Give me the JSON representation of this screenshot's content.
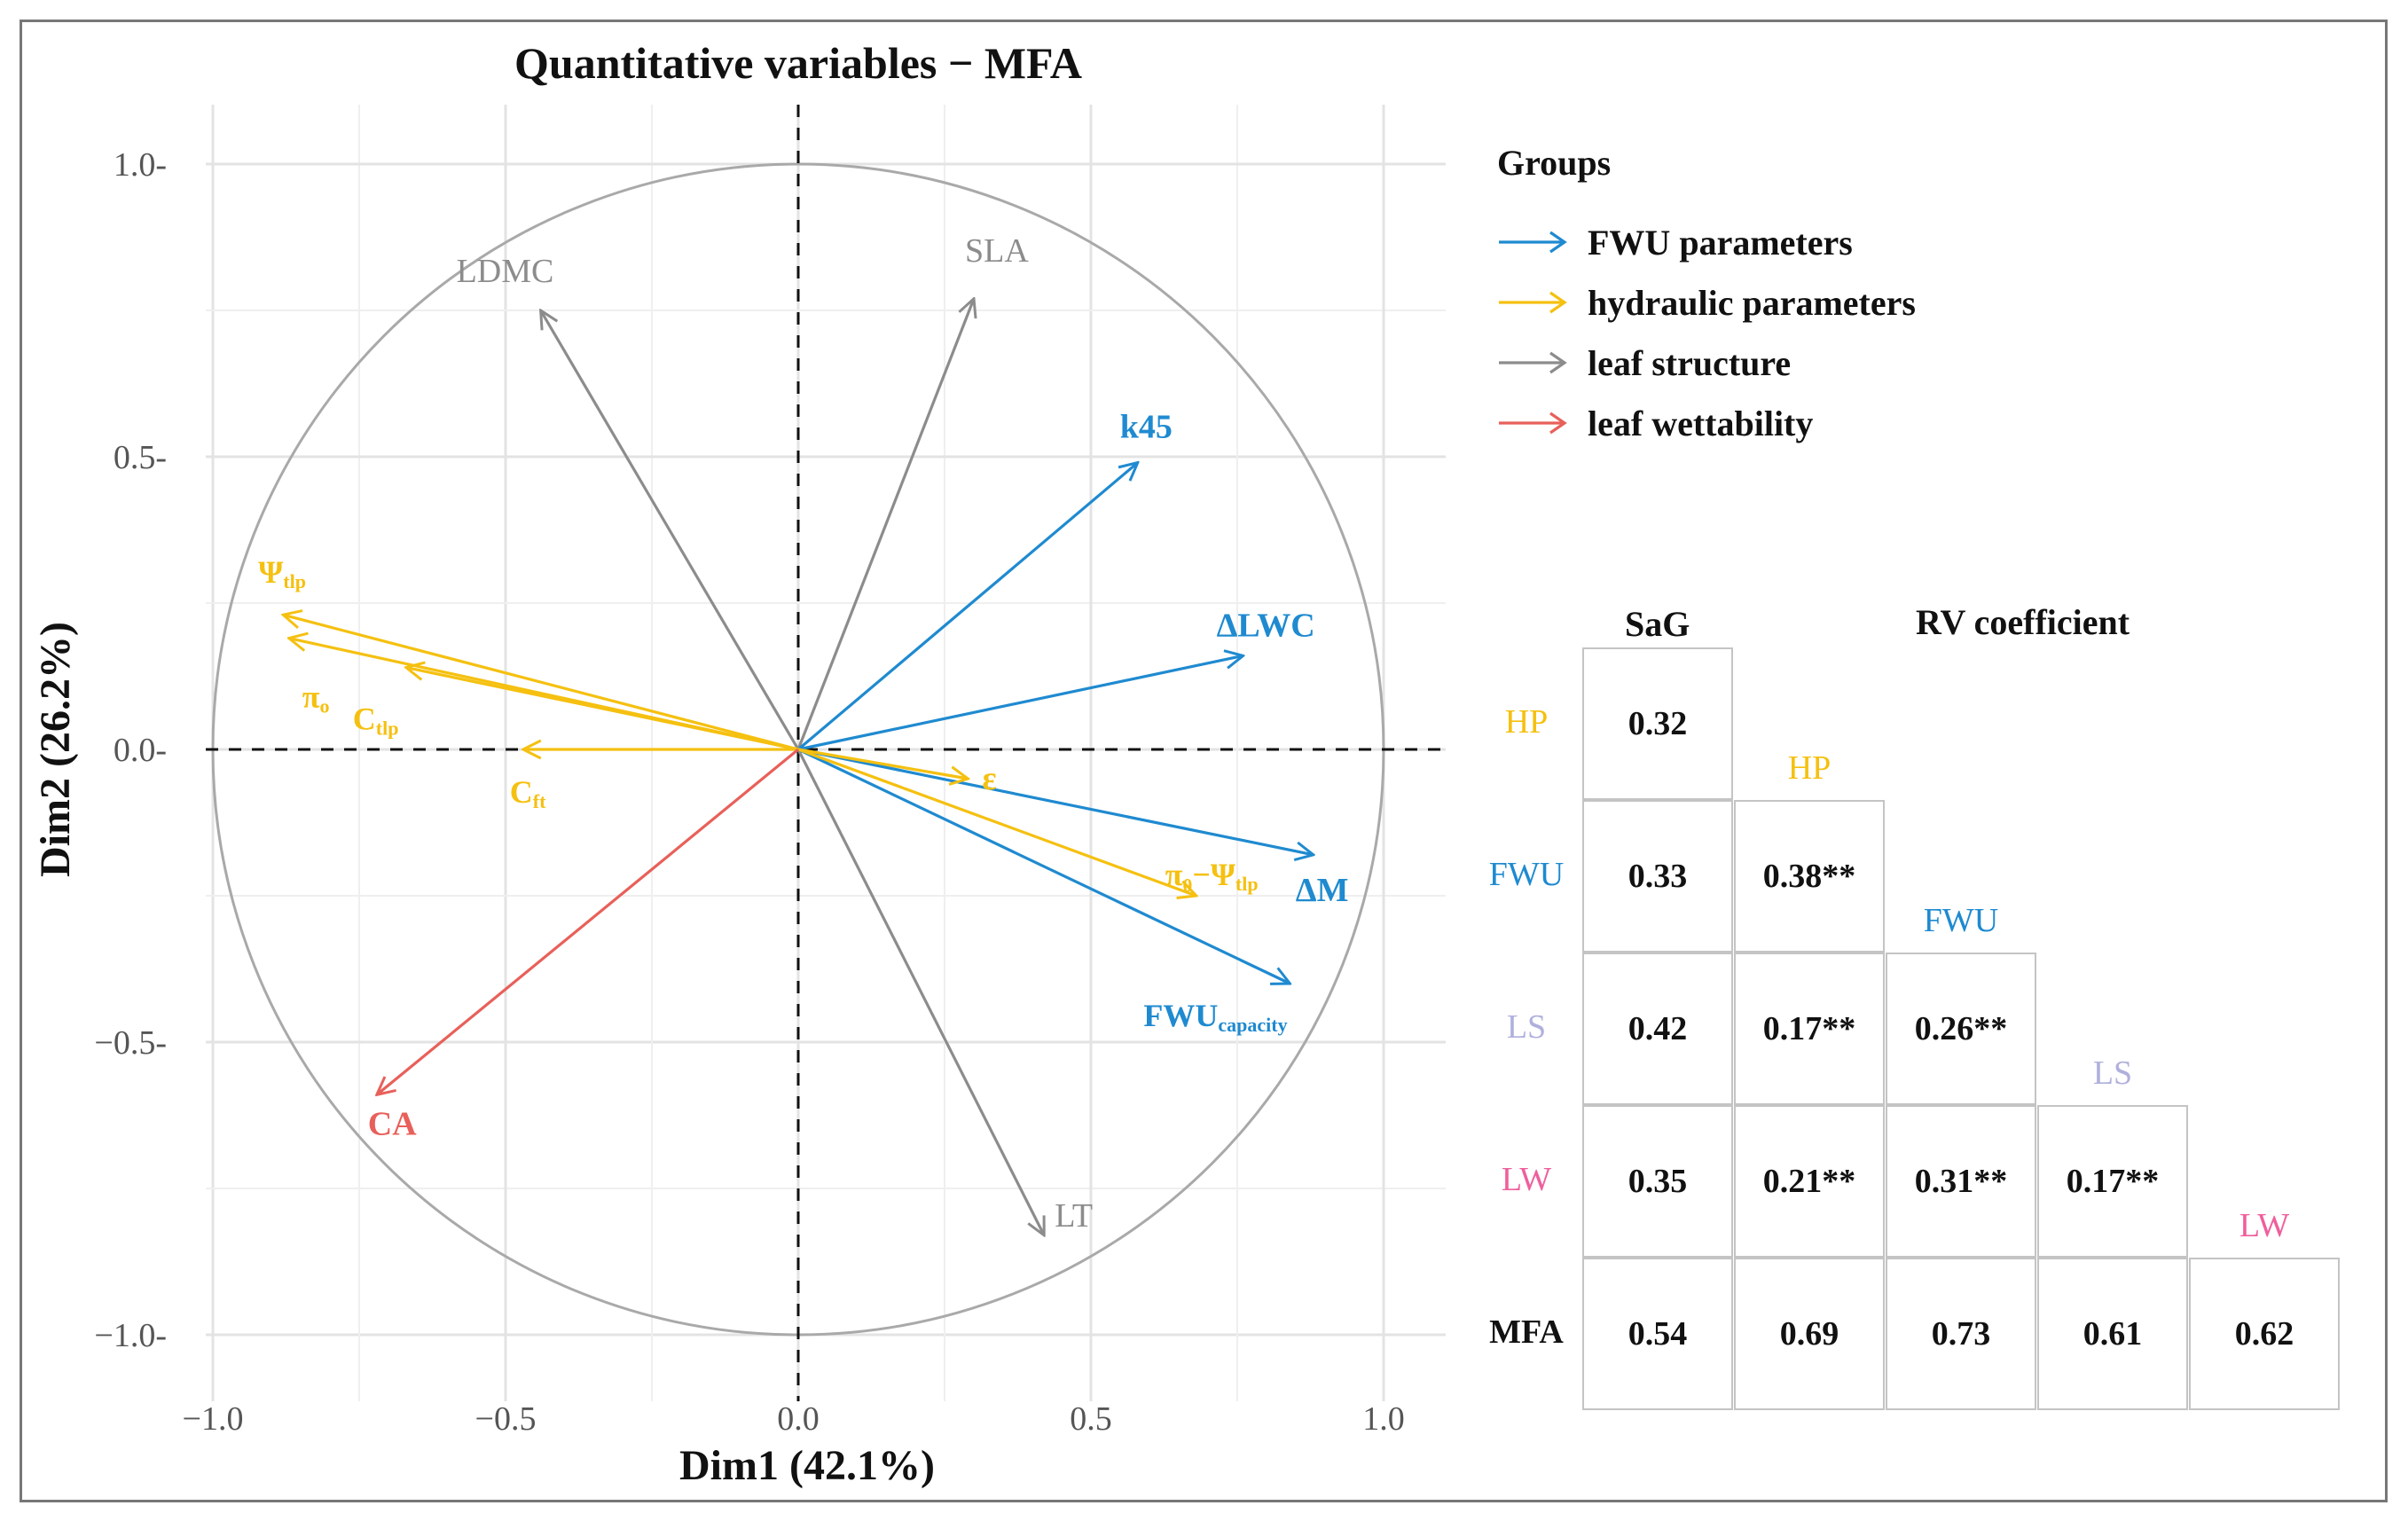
{
  "chart_data": [
    {
      "type": "biplot",
      "title": "Quantitative variables − MFA",
      "xlabel": "Dim1 (42.1%)",
      "ylabel": "Dim2 (26.2%)",
      "xlim": [
        -1.0,
        1.0
      ],
      "ylim": [
        -1.0,
        1.0
      ],
      "xticks": [
        -1.0,
        -0.5,
        0.0,
        0.5,
        1.0
      ],
      "yticks": [
        -1.0,
        -0.5,
        0.0,
        0.5,
        1.0
      ],
      "xtick_labels": [
        "−1.0",
        "−0.5",
        "0.0",
        "0.5",
        "1.0"
      ],
      "ytick_labels": [
        "1.0-",
        "0.5-",
        "0.0-",
        "−0.5-",
        "−1.0-"
      ],
      "grid": true,
      "correlation_circle": true,
      "groups": [
        {
          "name": "FWU parameters",
          "color": "#1f8ad0"
        },
        {
          "name": "hydraulic parameters",
          "color": "#f5c010"
        },
        {
          "name": "leaf structure",
          "color": "#8c8c8c"
        },
        {
          "name": "leaf wettability",
          "color": "#e8605a"
        }
      ],
      "legend_title": "Groups",
      "legend_position": "right",
      "variables": [
        {
          "name": "LDMC",
          "group": "leaf structure",
          "x": -0.44,
          "y": 0.75
        },
        {
          "name": "SLA",
          "group": "leaf structure",
          "x": 0.3,
          "y": 0.77
        },
        {
          "name": "LT",
          "group": "leaf structure",
          "x": 0.42,
          "y": -0.83
        },
        {
          "name": "k45",
          "group": "FWU parameters",
          "x": 0.58,
          "y": 0.49
        },
        {
          "name": "ΔLWC",
          "group": "FWU parameters",
          "x": 0.76,
          "y": 0.16
        },
        {
          "name": "ΔM",
          "group": "FWU parameters",
          "x": 0.88,
          "y": -0.18
        },
        {
          "name": "FWU",
          "sub": "capacity",
          "group": "FWU parameters",
          "x": 0.84,
          "y": -0.4
        },
        {
          "name": "Ψ",
          "sub": "tlp",
          "group": "hydraulic parameters",
          "x": -0.88,
          "y": 0.23
        },
        {
          "name": "π",
          "sub": "o",
          "group": "hydraulic parameters",
          "x": -0.87,
          "y": 0.19
        },
        {
          "name": "C",
          "sub": "tlp",
          "group": "hydraulic parameters",
          "x": -0.67,
          "y": 0.14
        },
        {
          "name": "C",
          "sub": "ft",
          "group": "hydraulic parameters",
          "x": -0.47,
          "y": 0.0
        },
        {
          "name": "ε",
          "group": "hydraulic parameters",
          "x": 0.29,
          "y": -0.05
        },
        {
          "name": "π₀−Ψ",
          "sub": "tlp",
          "group": "hydraulic parameters",
          "x": 0.68,
          "y": -0.25
        },
        {
          "name": "CA",
          "group": "leaf wettability",
          "x": -0.72,
          "y": -0.59
        }
      ]
    },
    {
      "type": "table",
      "title": "RV coefficient",
      "columns": [
        "SaG",
        "HP",
        "FWU",
        "LS",
        "LW"
      ],
      "rows": [
        {
          "label": "HP",
          "color": "#f5c010",
          "values": [
            "0.32"
          ]
        },
        {
          "label": "FWU",
          "color": "#1f8ad0",
          "values": [
            "0.33",
            "0.38**"
          ]
        },
        {
          "label": "LS",
          "color": "#b0b0dd",
          "values": [
            "0.42",
            "0.17**",
            "0.26**"
          ]
        },
        {
          "label": "LW",
          "color": "#ef5f9c",
          "values": [
            "0.35",
            "0.21**",
            "0.31**",
            "0.17**"
          ]
        },
        {
          "label": "MFA",
          "color": "#111111",
          "values": [
            "0.54",
            "0.69",
            "0.73",
            "0.61",
            "0.62"
          ]
        }
      ],
      "diagonal_labels": [
        {
          "label": "HP",
          "color": "#f5c010"
        },
        {
          "label": "FWU",
          "color": "#1f8ad0"
        },
        {
          "label": "LS",
          "color": "#b0b0dd"
        },
        {
          "label": "LW",
          "color": "#ef5f9c"
        }
      ]
    }
  ]
}
